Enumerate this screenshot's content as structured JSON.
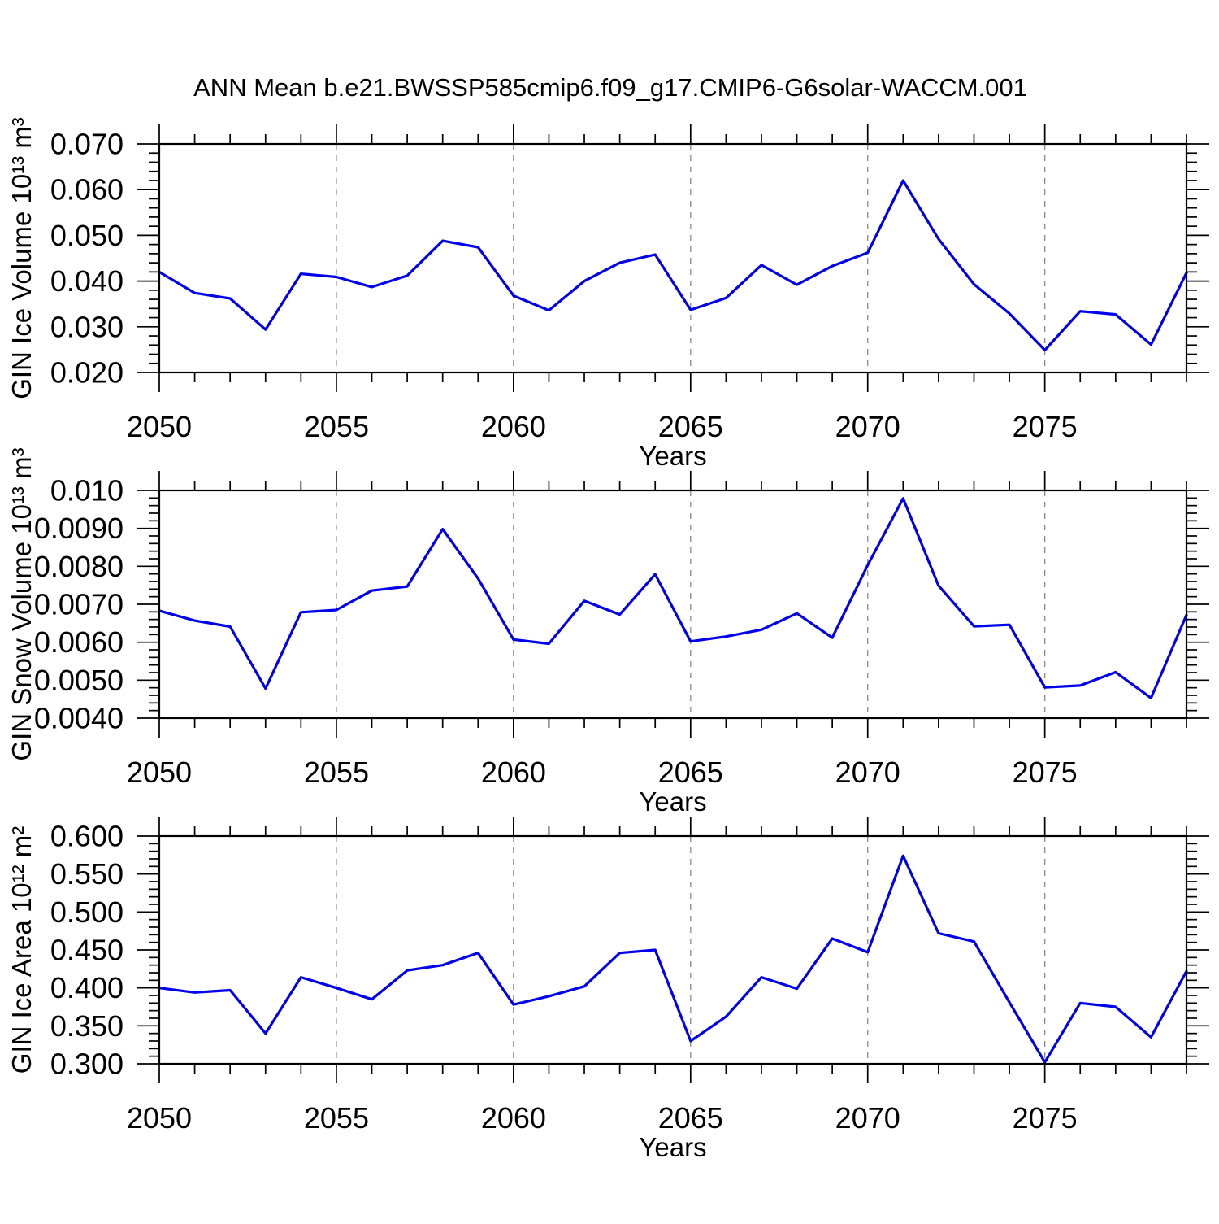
{
  "title": "ANN Mean b.e21.BWSSP585cmip6.f09_g17.CMIP6-G6solar-WACCM.001",
  "background_color": "#ffffff",
  "line_color": "#0000ee",
  "gridline_color": "#8a8a8a",
  "chart_data": [
    {
      "type": "line",
      "panel": "gin-ice-volume",
      "ylabel": "GIN Ice Volume 10¹³ m³",
      "xlabel": "Years",
      "xlim": [
        2050,
        2079
      ],
      "ylim": [
        0.02,
        0.07
      ],
      "grid": "vertical-dashed",
      "grid_x": [
        2055,
        2060,
        2065,
        2070,
        2075
      ],
      "y_minor_step": 0.002,
      "line_color": "#0000ee",
      "xticks": [
        {
          "v": 2050,
          "label": "2050"
        },
        {
          "v": 2055,
          "label": "2055"
        },
        {
          "v": 2060,
          "label": "2060"
        },
        {
          "v": 2065,
          "label": "2065"
        },
        {
          "v": 2070,
          "label": "2070"
        },
        {
          "v": 2075,
          "label": "2075"
        }
      ],
      "yticks": [
        {
          "v": 0.07,
          "label": "0.070"
        },
        {
          "v": 0.06,
          "label": "0.060"
        },
        {
          "v": 0.05,
          "label": "0.050"
        },
        {
          "v": 0.04,
          "label": "0.040"
        },
        {
          "v": 0.03,
          "label": "0.030"
        },
        {
          "v": 0.02,
          "label": "0.020"
        }
      ],
      "x": [
        2050,
        2051,
        2052,
        2053,
        2054,
        2055,
        2056,
        2057,
        2058,
        2059,
        2060,
        2061,
        2062,
        2063,
        2064,
        2065,
        2066,
        2067,
        2068,
        2069,
        2070,
        2071,
        2072,
        2073,
        2074,
        2075,
        2076,
        2077,
        2078,
        2079
      ],
      "values": [
        0.042,
        0.0374,
        0.0362,
        0.0294,
        0.0416,
        0.0409,
        0.0387,
        0.0412,
        0.0488,
        0.0474,
        0.0368,
        0.0336,
        0.04,
        0.044,
        0.0458,
        0.0337,
        0.0363,
        0.0435,
        0.0392,
        0.0433,
        0.0462,
        0.062,
        0.0492,
        0.0393,
        0.0329,
        0.0249,
        0.0334,
        0.0327,
        0.0261,
        0.0418
      ]
    },
    {
      "type": "line",
      "panel": "gin-snow-volume",
      "ylabel": "GIN Snow Volume 10¹³ m³",
      "xlabel": "Years",
      "xlim": [
        2050,
        2079
      ],
      "ylim": [
        0.004,
        0.01
      ],
      "grid": "vertical-dashed",
      "grid_x": [
        2055,
        2060,
        2065,
        2070,
        2075
      ],
      "y_minor_step": 0.0002,
      "line_color": "#0000ee",
      "xticks": [
        {
          "v": 2050,
          "label": "2050"
        },
        {
          "v": 2055,
          "label": "2055"
        },
        {
          "v": 2060,
          "label": "2060"
        },
        {
          "v": 2065,
          "label": "2065"
        },
        {
          "v": 2070,
          "label": "2070"
        },
        {
          "v": 2075,
          "label": "2075"
        }
      ],
      "yticks": [
        {
          "v": 0.01,
          "label": "0.010"
        },
        {
          "v": 0.009,
          "label": "0.0090"
        },
        {
          "v": 0.008,
          "label": "0.0080"
        },
        {
          "v": 0.007,
          "label": "0.0070"
        },
        {
          "v": 0.006,
          "label": "0.0060"
        },
        {
          "v": 0.005,
          "label": "0.0050"
        },
        {
          "v": 0.004,
          "label": "0.0040"
        }
      ],
      "x": [
        2050,
        2051,
        2052,
        2053,
        2054,
        2055,
        2056,
        2057,
        2058,
        2059,
        2060,
        2061,
        2062,
        2063,
        2064,
        2065,
        2066,
        2067,
        2068,
        2069,
        2070,
        2071,
        2072,
        2073,
        2074,
        2075,
        2076,
        2077,
        2078,
        2079
      ],
      "values": [
        0.00683,
        0.00657,
        0.00641,
        0.00478,
        0.00679,
        0.00685,
        0.00736,
        0.00747,
        0.00898,
        0.00768,
        0.00607,
        0.00596,
        0.00709,
        0.00673,
        0.00779,
        0.00602,
        0.00615,
        0.00633,
        0.00676,
        0.00612,
        0.00803,
        0.00979,
        0.00749,
        0.00642,
        0.00646,
        0.00481,
        0.00486,
        0.00521,
        0.00453,
        0.00672
      ]
    },
    {
      "type": "line",
      "panel": "gin-ice-area",
      "ylabel": "GIN Ice Area 10¹² m²",
      "xlabel": "Years",
      "xlim": [
        2050,
        2079
      ],
      "ylim": [
        0.3,
        0.6
      ],
      "grid": "vertical-dashed",
      "grid_x": [
        2055,
        2060,
        2065,
        2070,
        2075
      ],
      "y_minor_step": 0.01,
      "line_color": "#0000ee",
      "xticks": [
        {
          "v": 2050,
          "label": "2050"
        },
        {
          "v": 2055,
          "label": "2055"
        },
        {
          "v": 2060,
          "label": "2060"
        },
        {
          "v": 2065,
          "label": "2065"
        },
        {
          "v": 2070,
          "label": "2070"
        },
        {
          "v": 2075,
          "label": "2075"
        }
      ],
      "yticks": [
        {
          "v": 0.6,
          "label": "0.600"
        },
        {
          "v": 0.55,
          "label": "0.550"
        },
        {
          "v": 0.5,
          "label": "0.500"
        },
        {
          "v": 0.45,
          "label": "0.450"
        },
        {
          "v": 0.4,
          "label": "0.400"
        },
        {
          "v": 0.35,
          "label": "0.350"
        },
        {
          "v": 0.3,
          "label": "0.300"
        }
      ],
      "x": [
        2050,
        2051,
        2052,
        2053,
        2054,
        2055,
        2056,
        2057,
        2058,
        2059,
        2060,
        2061,
        2062,
        2063,
        2064,
        2065,
        2066,
        2067,
        2068,
        2069,
        2070,
        2071,
        2072,
        2073,
        2074,
        2075,
        2076,
        2077,
        2078,
        2079
      ],
      "values": [
        0.4,
        0.394,
        0.397,
        0.34,
        0.414,
        0.4,
        0.385,
        0.423,
        0.43,
        0.446,
        0.378,
        0.389,
        0.402,
        0.446,
        0.45,
        0.33,
        0.362,
        0.414,
        0.399,
        0.465,
        0.447,
        0.574,
        0.472,
        0.461,
        0.381,
        0.302,
        0.38,
        0.375,
        0.335,
        0.422
      ]
    }
  ]
}
